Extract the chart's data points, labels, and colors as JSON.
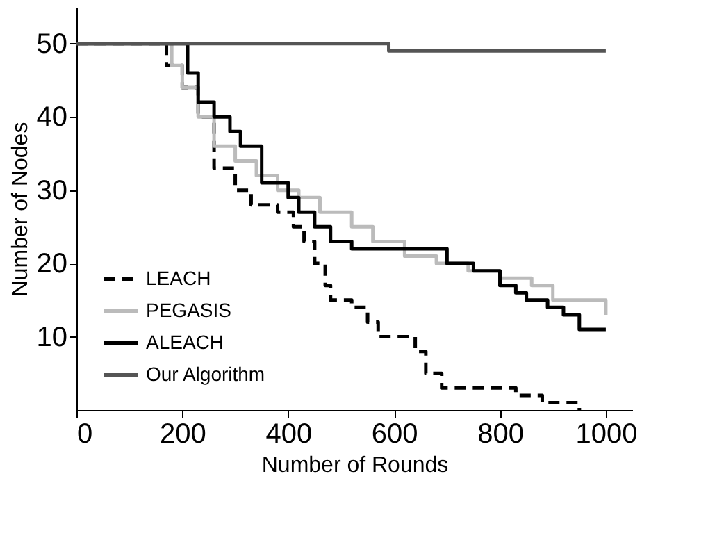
{
  "chart_data": {
    "type": "step",
    "xlabel": "Number of Rounds",
    "ylabel": "Number of Nodes",
    "xlim": [
      0,
      1050
    ],
    "ylim": [
      0,
      55
    ],
    "xticks": [
      0,
      200,
      400,
      600,
      800,
      1000
    ],
    "yticks": [
      10,
      20,
      30,
      40,
      50
    ],
    "grid": false,
    "legend": "bottom left",
    "marker": "none",
    "series": [
      {
        "name": "LEACH",
        "color": "#000000",
        "line_style": "dashed",
        "x": [
          0,
          150,
          170,
          200,
          230,
          260,
          300,
          330,
          380,
          410,
          430,
          450,
          470,
          480,
          520,
          550,
          570,
          620,
          640,
          660,
          690,
          750,
          830,
          880,
          950
        ],
        "values": [
          50,
          50,
          47,
          44,
          40,
          33,
          30,
          28,
          27,
          25,
          23,
          20,
          17,
          15,
          14,
          12,
          10,
          10,
          8,
          5,
          3,
          3,
          2,
          1,
          0
        ]
      },
      {
        "name": "PEGASIS",
        "color": "#bbbbbb",
        "line_style": "solid",
        "x": [
          0,
          160,
          180,
          200,
          230,
          260,
          300,
          340,
          380,
          420,
          460,
          520,
          560,
          620,
          680,
          740,
          800,
          860,
          900,
          1000
        ],
        "values": [
          50,
          50,
          47,
          44,
          40,
          36,
          34,
          32,
          30,
          29,
          27,
          25,
          23,
          21,
          20,
          19,
          18,
          17,
          15,
          13
        ]
      },
      {
        "name": "ALEACH",
        "color": "#000000",
        "line_style": "solid",
        "x": [
          0,
          190,
          210,
          230,
          260,
          290,
          310,
          350,
          400,
          420,
          450,
          480,
          520,
          680,
          700,
          750,
          800,
          830,
          850,
          890,
          920,
          950,
          1000
        ],
        "values": [
          50,
          50,
          46,
          42,
          40,
          38,
          36,
          31,
          29,
          27,
          25,
          23,
          22,
          22,
          20,
          19,
          17,
          16,
          15,
          14,
          13,
          11,
          11
        ]
      },
      {
        "name": "Our Algorithm",
        "color": "#555555",
        "line_style": "solid",
        "x": [
          0,
          590,
          1000
        ],
        "values": [
          50,
          49,
          49
        ]
      }
    ]
  }
}
